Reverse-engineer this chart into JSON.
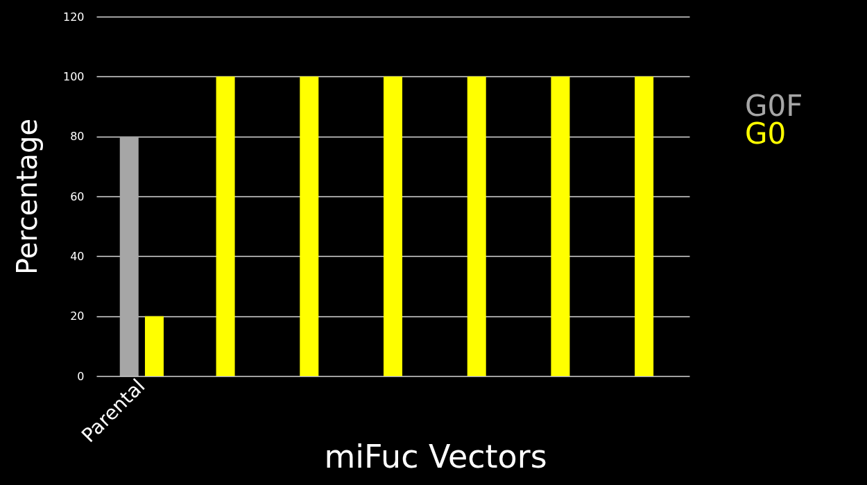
{
  "chart_data": {
    "type": "bar",
    "xlabel": "miFuc Vectors",
    "ylabel": "Percentage",
    "categories": [
      "Parental",
      null,
      null,
      null,
      null,
      null,
      null
    ],
    "series": [
      {
        "name": "G0F",
        "color": "#a6a6a6",
        "values": [
          80,
          null,
          null,
          null,
          null,
          null,
          null
        ]
      },
      {
        "name": "G0",
        "color": "#ffff00",
        "values": [
          20,
          100,
          100,
          100,
          100,
          100,
          100
        ]
      }
    ],
    "ylim": [
      0,
      120
    ],
    "yticks": [
      0,
      20,
      40,
      60,
      80,
      100,
      120
    ],
    "grid": "y",
    "legend": "right"
  }
}
